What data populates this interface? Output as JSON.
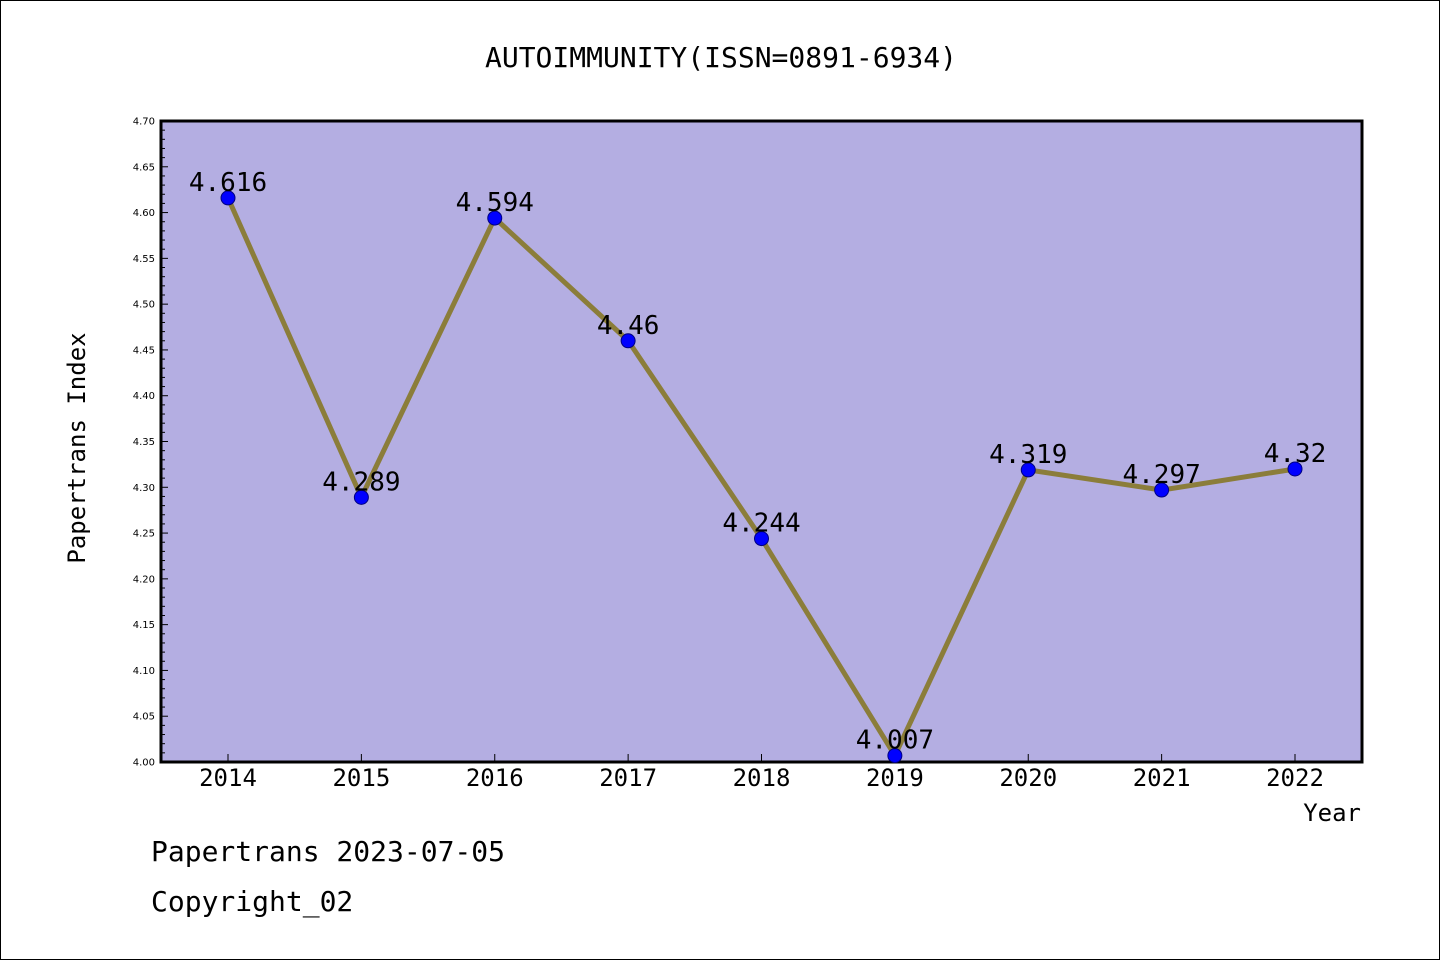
{
  "chart_data": {
    "type": "line",
    "title": "AUTOIMMUNITY(ISSN=0891-6934)",
    "xlabel": "Year",
    "ylabel": "Papertrans Index",
    "categories": [
      "2014",
      "2015",
      "2016",
      "2017",
      "2018",
      "2019",
      "2020",
      "2021",
      "2022"
    ],
    "series": [
      {
        "values": [
          4.616,
          4.289,
          4.594,
          4.46,
          4.244,
          4.007,
          4.319,
          4.297,
          4.32
        ],
        "labels": [
          "4.616",
          "4.289",
          "4.594",
          "4.46",
          "4.244",
          "4.007",
          "4.319",
          "4.297",
          "4.32"
        ]
      }
    ],
    "ylim": [
      4.0,
      4.7
    ],
    "yticks": [
      "4.00",
      "4.05",
      "4.10",
      "4.15",
      "4.20",
      "4.25",
      "4.30",
      "4.35",
      "4.40",
      "4.45",
      "4.50",
      "4.55",
      "4.60",
      "4.65",
      "4.70"
    ],
    "grid": false,
    "colors": {
      "plot_background": "#b4aee2",
      "line": "#8b7d3a",
      "marker": "#0000ff",
      "axis": "#000000"
    }
  },
  "footer": {
    "date_text": "Papertrans 2023-07-05",
    "copyright_text": "Copyright_02"
  }
}
